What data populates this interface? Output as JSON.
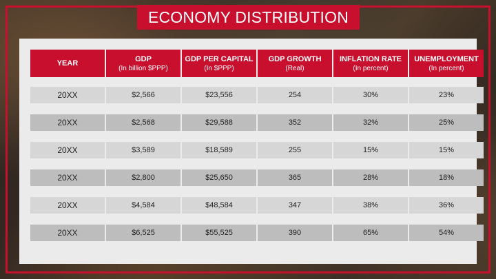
{
  "title": "ECONOMY DISTRIBUTION",
  "colors": {
    "accent": "#c8102e",
    "panel": "#ebebeb",
    "row_light": "#d6d6d6",
    "row_dark": "#bdbdbd"
  },
  "table": {
    "headers": [
      {
        "main": "YEAR",
        "sub": ""
      },
      {
        "main": "GDP",
        "sub": "(In billion $PPP)"
      },
      {
        "main": "GDP PER CAPITAL",
        "sub": "(In $PPP)"
      },
      {
        "main": "GDP GROWTH",
        "sub": "(Real)"
      },
      {
        "main": "INFLATION RATE",
        "sub": "(In percent)"
      },
      {
        "main": "UNEMPLOYMENT",
        "sub": "(In percent)"
      }
    ],
    "rows": [
      [
        "20XX",
        "$2,566",
        "$23,556",
        "254",
        "30%",
        "23%"
      ],
      [
        "20XX",
        "$2,568",
        "$29,588",
        "352",
        "32%",
        "25%"
      ],
      [
        "20XX",
        "$3,589",
        "$18,589",
        "255",
        "15%",
        "15%"
      ],
      [
        "20XX",
        "$2,800",
        "$25,650",
        "365",
        "28%",
        "18%"
      ],
      [
        "20XX",
        "$4,584",
        "$48,584",
        "347",
        "38%",
        "36%"
      ],
      [
        "20XX",
        "$6,525",
        "$55,525",
        "390",
        "65%",
        "54%"
      ]
    ]
  }
}
